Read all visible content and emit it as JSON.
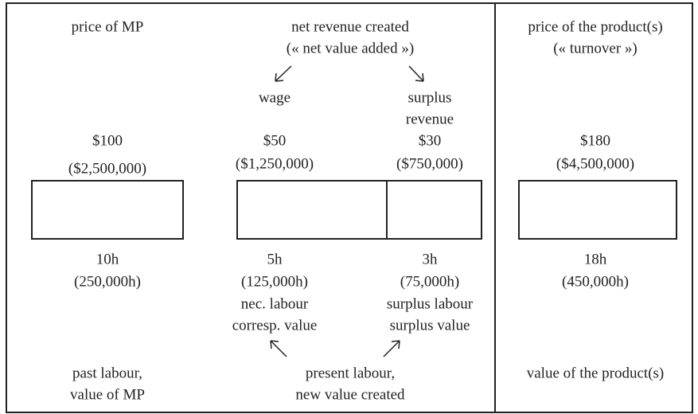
{
  "past": {
    "heading": [
      "price of MP"
    ],
    "price": "$100",
    "price_total": "($2,500,000)",
    "hours": "10h",
    "hours_total": "(250,000h)",
    "footer": [
      "past labour,",
      "value of MP"
    ]
  },
  "present": {
    "heading": [
      "net revenue created",
      "(« net value added »)"
    ],
    "wage": {
      "label": [
        "wage"
      ],
      "price": "$50",
      "price_total": "($1,250,000)",
      "hours": "5h",
      "hours_total": "(125,000h)",
      "labour": [
        "nec. labour",
        "corresp. value"
      ]
    },
    "surplus": {
      "label": [
        "surplus",
        "revenue"
      ],
      "price": "$30",
      "price_total": "($750,000)",
      "hours": "3h",
      "hours_total": "(75,000h)",
      "labour": [
        "surplus labour",
        "surplus value"
      ]
    },
    "footer": [
      "present labour,",
      "new value created"
    ]
  },
  "product": {
    "heading": [
      "price of the product(s)",
      "(« turnover »)"
    ],
    "price": "$180",
    "price_total": "($4,500,000)",
    "hours": "18h",
    "hours_total": "(450,000h)",
    "footer": [
      "value of the product(s)"
    ]
  }
}
